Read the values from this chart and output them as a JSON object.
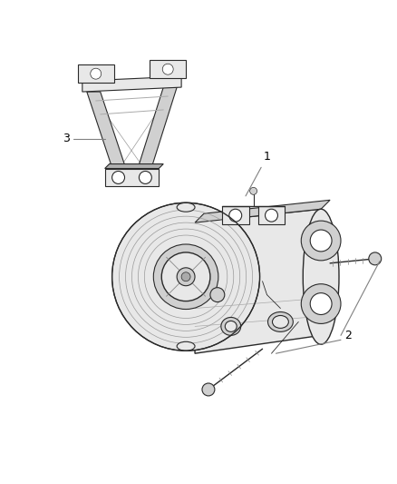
{
  "bg": "#ffffff",
  "line": "#2a2a2a",
  "gray_fill": "#e8e8e8",
  "gray_mid": "#d0d0d0",
  "gray_dark": "#b0b0b0",
  "label_line": "#808080",
  "fig_w": 4.38,
  "fig_h": 5.33,
  "dpi": 100
}
